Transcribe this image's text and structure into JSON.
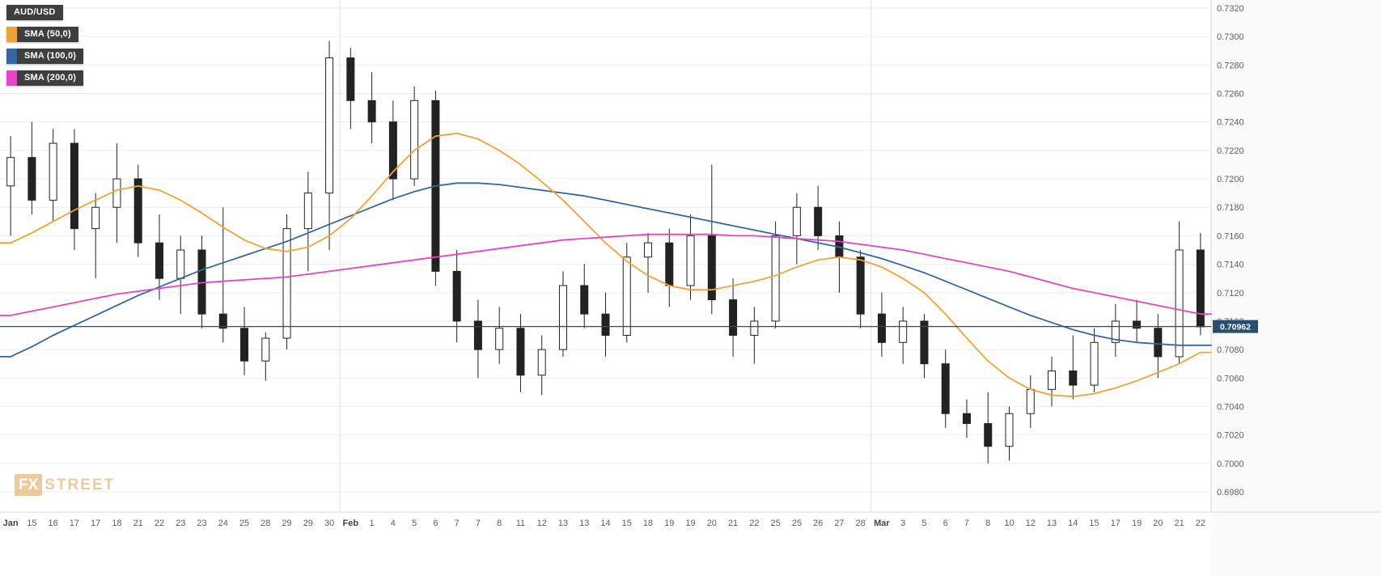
{
  "colors": {
    "background": "#ffffff",
    "axis_strip_bg": "#fafafa",
    "grid": "#ececec",
    "month_grid": "#e2e2e2",
    "border": "#d8d8d8",
    "axis_text": "#5f5f5f",
    "candle_stroke": "#222222",
    "candle_up_fill": "#ffffff",
    "candle_down_fill": "#222222",
    "sma50": "#f0a236",
    "sma100": "#33689e",
    "sma200": "#e544c4",
    "price_line": "#2b4d6f",
    "price_badge_bg": "#2b4d6f",
    "price_badge_text": "#ffffff"
  },
  "legend": {
    "items": [
      {
        "id": "audusd",
        "label": "AUD/USD",
        "marker": null
      },
      {
        "id": "sma50",
        "label": "SMA (50,0)",
        "marker": "#f0a236"
      },
      {
        "id": "sma100",
        "label": "SMA (100,0)",
        "marker": "#33689e"
      },
      {
        "id": "sma200",
        "label": "SMA (200,0)",
        "marker": "#e544c4"
      }
    ]
  },
  "watermark": {
    "fx": "FX",
    "street": "STREET"
  },
  "price_axis": {
    "max": 0.732,
    "min": 0.698,
    "step": 0.002,
    "labels": [
      "0.7320",
      "0.7300",
      "0.7280",
      "0.7260",
      "0.7240",
      "0.7220",
      "0.7200",
      "0.7180",
      "0.7160",
      "0.7140",
      "0.7120",
      "0.7100",
      "0.7080",
      "0.7060",
      "0.7040",
      "0.7020",
      "0.7000",
      "0.6980"
    ]
  },
  "current_price": {
    "value": 0.70962,
    "label": "0.70962"
  },
  "chart_data": {
    "type": "candlestick",
    "symbol": "AUD/USD",
    "title": "AUD/USD daily candlestick chart with SMA(50), SMA(100), SMA(200) overlays",
    "ylim": [
      0.698,
      0.732
    ],
    "y_step": 0.002,
    "grid": true,
    "legend_position": "top-left",
    "current_price": 0.70962,
    "x_labels": [
      "Jan",
      "15",
      "16",
      "17",
      "17",
      "18",
      "21",
      "22",
      "23",
      "23",
      "24",
      "25",
      "28",
      "29",
      "29",
      "30",
      "Feb",
      "1",
      "4",
      "5",
      "6",
      "7",
      "7",
      "8",
      "11",
      "12",
      "13",
      "13",
      "14",
      "15",
      "18",
      "19",
      "19",
      "20",
      "21",
      "22",
      "25",
      "25",
      "26",
      "27",
      "28",
      "Mar",
      "3",
      "5",
      "6",
      "7",
      "8",
      "10",
      "12",
      "13",
      "14",
      "15",
      "17",
      "19",
      "20",
      "21",
      "22"
    ],
    "month_gridline_indexes": [
      16,
      41
    ],
    "candles": [
      [
        0.7195,
        0.723,
        0.716,
        0.7215
      ],
      [
        0.7215,
        0.724,
        0.7175,
        0.7185
      ],
      [
        0.7185,
        0.7235,
        0.717,
        0.7225
      ],
      [
        0.7225,
        0.7235,
        0.715,
        0.7165
      ],
      [
        0.7165,
        0.719,
        0.713,
        0.718
      ],
      [
        0.718,
        0.7225,
        0.7155,
        0.72
      ],
      [
        0.72,
        0.721,
        0.7145,
        0.7155
      ],
      [
        0.7155,
        0.7175,
        0.7115,
        0.713
      ],
      [
        0.713,
        0.716,
        0.7105,
        0.715
      ],
      [
        0.715,
        0.716,
        0.7095,
        0.7105
      ],
      [
        0.7105,
        0.718,
        0.7085,
        0.7095
      ],
      [
        0.7095,
        0.711,
        0.7062,
        0.7072
      ],
      [
        0.7072,
        0.7092,
        0.7058,
        0.7088
      ],
      [
        0.7088,
        0.7175,
        0.708,
        0.7165
      ],
      [
        0.7165,
        0.7205,
        0.7135,
        0.719
      ],
      [
        0.719,
        0.7297,
        0.715,
        0.7285
      ],
      [
        0.7285,
        0.7292,
        0.7235,
        0.7255
      ],
      [
        0.7255,
        0.7275,
        0.7225,
        0.724
      ],
      [
        0.724,
        0.7255,
        0.7185,
        0.72
      ],
      [
        0.72,
        0.7265,
        0.7195,
        0.7255
      ],
      [
        0.7255,
        0.7262,
        0.7125,
        0.7135
      ],
      [
        0.7135,
        0.715,
        0.7085,
        0.71
      ],
      [
        0.71,
        0.7115,
        0.706,
        0.708
      ],
      [
        0.708,
        0.711,
        0.707,
        0.7095
      ],
      [
        0.7095,
        0.7105,
        0.705,
        0.7062
      ],
      [
        0.7062,
        0.709,
        0.7048,
        0.708
      ],
      [
        0.708,
        0.7135,
        0.7075,
        0.7125
      ],
      [
        0.7125,
        0.714,
        0.7095,
        0.7105
      ],
      [
        0.7105,
        0.712,
        0.7075,
        0.709
      ],
      [
        0.709,
        0.7155,
        0.7085,
        0.7145
      ],
      [
        0.7145,
        0.7162,
        0.712,
        0.7155
      ],
      [
        0.7155,
        0.7165,
        0.711,
        0.7125
      ],
      [
        0.7125,
        0.7175,
        0.7115,
        0.716
      ],
      [
        0.716,
        0.721,
        0.7105,
        0.7115
      ],
      [
        0.7115,
        0.713,
        0.7075,
        0.709
      ],
      [
        0.709,
        0.711,
        0.707,
        0.71
      ],
      [
        0.71,
        0.717,
        0.7095,
        0.716
      ],
      [
        0.716,
        0.719,
        0.714,
        0.718
      ],
      [
        0.718,
        0.7195,
        0.715,
        0.716
      ],
      [
        0.716,
        0.717,
        0.712,
        0.7145
      ],
      [
        0.7145,
        0.715,
        0.7095,
        0.7105
      ],
      [
        0.7105,
        0.712,
        0.7075,
        0.7085
      ],
      [
        0.7085,
        0.711,
        0.707,
        0.71
      ],
      [
        0.71,
        0.7105,
        0.706,
        0.707
      ],
      [
        0.707,
        0.708,
        0.7025,
        0.7035
      ],
      [
        0.7035,
        0.7045,
        0.7018,
        0.7028
      ],
      [
        0.7028,
        0.705,
        0.7,
        0.7012
      ],
      [
        0.7012,
        0.704,
        0.7002,
        0.7035
      ],
      [
        0.7035,
        0.7062,
        0.7025,
        0.7052
      ],
      [
        0.7052,
        0.7075,
        0.704,
        0.7065
      ],
      [
        0.7065,
        0.709,
        0.7045,
        0.7055
      ],
      [
        0.7055,
        0.7095,
        0.705,
        0.7085
      ],
      [
        0.7085,
        0.7112,
        0.7075,
        0.71
      ],
      [
        0.71,
        0.7115,
        0.7085,
        0.7095
      ],
      [
        0.7095,
        0.7105,
        0.706,
        0.7075
      ],
      [
        0.7075,
        0.717,
        0.707,
        0.715
      ],
      [
        0.715,
        0.7162,
        0.709,
        0.7096
      ]
    ],
    "series": [
      {
        "name": "SMA (50,0)",
        "color_key": "sma50",
        "values": [
          0.7155,
          0.7162,
          0.717,
          0.7178,
          0.7185,
          0.7192,
          0.7195,
          0.7192,
          0.7185,
          0.7176,
          0.7166,
          0.7157,
          0.7151,
          0.7149,
          0.7152,
          0.716,
          0.7172,
          0.7188,
          0.7205,
          0.722,
          0.723,
          0.7232,
          0.7228,
          0.722,
          0.721,
          0.7198,
          0.7185,
          0.717,
          0.7155,
          0.7142,
          0.7132,
          0.7125,
          0.7122,
          0.7122,
          0.7125,
          0.7128,
          0.7132,
          0.7138,
          0.7143,
          0.7145,
          0.7143,
          0.7138,
          0.713,
          0.712,
          0.7105,
          0.7088,
          0.7072,
          0.706,
          0.7052,
          0.7048,
          0.7047,
          0.7049,
          0.7053,
          0.7058,
          0.7064,
          0.707,
          0.7078
        ]
      },
      {
        "name": "SMA (100,0)",
        "color_key": "sma100",
        "values": [
          0.7075,
          0.7082,
          0.709,
          0.7097,
          0.7104,
          0.7111,
          0.7118,
          0.7124,
          0.713,
          0.7136,
          0.7141,
          0.7146,
          0.7151,
          0.7156,
          0.7162,
          0.7168,
          0.7174,
          0.718,
          0.7186,
          0.7191,
          0.7195,
          0.7197,
          0.7197,
          0.7196,
          0.7194,
          0.7192,
          0.719,
          0.7188,
          0.7185,
          0.7182,
          0.7179,
          0.7176,
          0.7173,
          0.717,
          0.7167,
          0.7164,
          0.7161,
          0.7158,
          0.7155,
          0.7152,
          0.7148,
          0.7144,
          0.7139,
          0.7134,
          0.7128,
          0.7122,
          0.7116,
          0.711,
          0.7104,
          0.7099,
          0.7094,
          0.709,
          0.7087,
          0.7085,
          0.7084,
          0.7083,
          0.7083
        ]
      },
      {
        "name": "SMA (200,0)",
        "color_key": "sma200",
        "values": [
          0.7104,
          0.7107,
          0.711,
          0.7113,
          0.7116,
          0.7119,
          0.7121,
          0.7123,
          0.7125,
          0.7127,
          0.7128,
          0.7129,
          0.713,
          0.7131,
          0.7133,
          0.7135,
          0.7137,
          0.7139,
          0.7141,
          0.7143,
          0.7145,
          0.7147,
          0.7149,
          0.7151,
          0.7153,
          0.7155,
          0.7157,
          0.7158,
          0.7159,
          0.716,
          0.7161,
          0.7161,
          0.7161,
          0.7161,
          0.716,
          0.716,
          0.7159,
          0.7158,
          0.7157,
          0.7156,
          0.7154,
          0.7152,
          0.715,
          0.7147,
          0.7144,
          0.7141,
          0.7138,
          0.7135,
          0.7131,
          0.7127,
          0.7123,
          0.712,
          0.7117,
          0.7114,
          0.7111,
          0.7108,
          0.7105
        ]
      }
    ]
  }
}
